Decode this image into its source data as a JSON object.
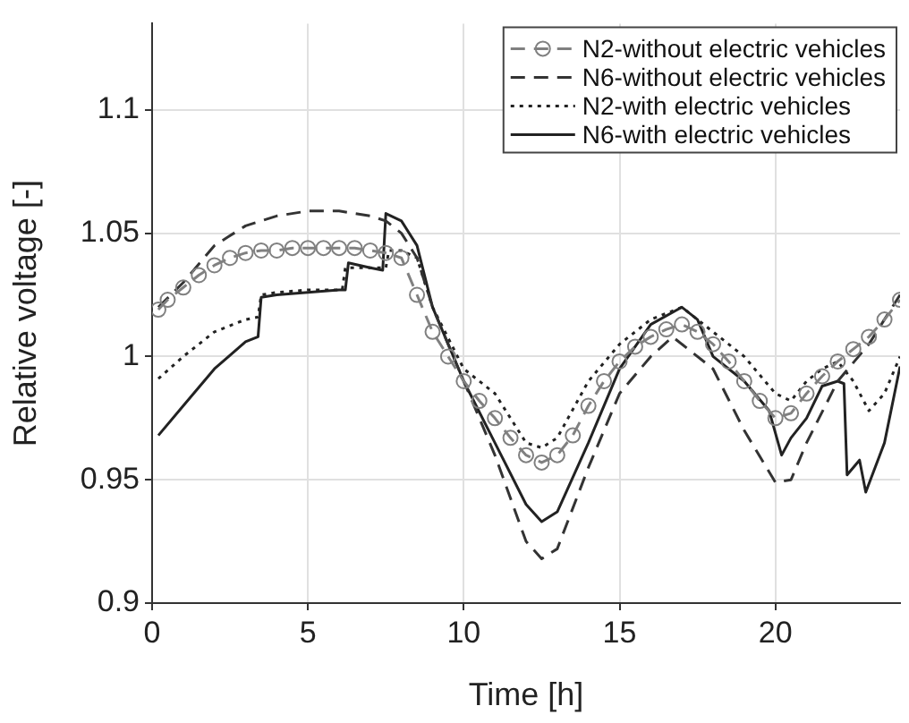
{
  "chart_data": {
    "type": "line",
    "xlabel": "Time [h]",
    "ylabel": "Relative voltage [-]",
    "xlim": [
      0,
      24
    ],
    "ylim": [
      0.9,
      1.135
    ],
    "xticks": [
      0,
      5,
      10,
      15,
      20
    ],
    "yticks": [
      0.9,
      0.95,
      1,
      1.05,
      1.1
    ],
    "grid": true,
    "legend": "top right",
    "series": [
      {
        "name": "N2-without electric vehicles",
        "color": "#808080",
        "marker": "circle",
        "line_style": "dashed",
        "x": [
          0.2,
          0.5,
          1,
          1.5,
          2,
          2.5,
          3,
          3.5,
          4,
          4.5,
          5,
          5.5,
          6,
          6.5,
          7,
          7.5,
          8,
          8.5,
          9,
          9.5,
          10,
          10.5,
          11,
          11.5,
          12,
          12.5,
          13,
          13.5,
          14,
          14.5,
          15,
          15.5,
          16,
          16.5,
          17,
          17.5,
          18,
          18.5,
          19,
          19.5,
          20,
          20.5,
          21,
          21.5,
          22,
          22.5,
          23,
          23.5,
          24
        ],
        "values": [
          1.019,
          1.023,
          1.028,
          1.033,
          1.037,
          1.04,
          1.042,
          1.043,
          1.043,
          1.044,
          1.044,
          1.044,
          1.044,
          1.044,
          1.043,
          1.042,
          1.04,
          1.025,
          1.01,
          1.0,
          0.99,
          0.982,
          0.975,
          0.967,
          0.96,
          0.957,
          0.96,
          0.968,
          0.98,
          0.99,
          0.998,
          1.004,
          1.008,
          1.011,
          1.013,
          1.01,
          1.005,
          0.998,
          0.99,
          0.982,
          0.975,
          0.977,
          0.985,
          0.992,
          0.998,
          1.003,
          1.008,
          1.015,
          1.023
        ]
      },
      {
        "name": "N6-without electric vehicles",
        "color": "#333333",
        "marker": "none",
        "line_style": "dashed",
        "x": [
          0.2,
          1,
          2,
          3,
          4,
          5,
          6,
          7,
          7.5,
          8,
          8.5,
          9,
          10,
          11,
          12,
          12.5,
          13,
          14,
          15,
          16,
          16.7,
          18,
          19,
          20,
          20.5,
          21,
          22,
          23,
          24
        ],
        "values": [
          1.02,
          1.03,
          1.045,
          1.053,
          1.057,
          1.059,
          1.059,
          1.057,
          1.055,
          1.05,
          1.04,
          1.02,
          0.99,
          0.96,
          0.925,
          0.918,
          0.922,
          0.955,
          0.985,
          1.0,
          1.008,
          0.995,
          0.97,
          0.949,
          0.95,
          0.965,
          0.99,
          1.005,
          1.025
        ]
      },
      {
        "name": "N2-with electric vehicles",
        "color": "#222222",
        "marker": "none",
        "line_style": "dotted",
        "x": [
          0.2,
          1,
          2,
          3,
          3.4,
          3.5,
          4,
          5,
          6,
          6.1,
          6.2,
          7,
          7.5,
          7.6,
          8,
          8.5,
          9,
          10,
          11,
          12,
          12.5,
          13,
          14,
          15,
          16,
          17,
          18,
          19,
          20,
          20.5,
          21,
          21.5,
          22,
          22.5,
          23,
          23.5,
          24
        ],
        "values": [
          0.991,
          1.0,
          1.01,
          1.015,
          1.016,
          1.025,
          1.026,
          1.027,
          1.027,
          1.027,
          1.036,
          1.036,
          1.036,
          1.043,
          1.043,
          1.04,
          1.02,
          0.995,
          0.985,
          0.965,
          0.963,
          0.967,
          0.99,
          1.005,
          1.015,
          1.02,
          1.01,
          1.0,
          0.985,
          0.982,
          0.99,
          0.995,
          0.998,
          0.99,
          0.978,
          0.985,
          1.0
        ]
      },
      {
        "name": "N6-with electric vehicles",
        "color": "#222222",
        "marker": "none",
        "line_style": "solid",
        "x": [
          0.2,
          1,
          2,
          3,
          3.4,
          3.5,
          4,
          6,
          6.2,
          6.3,
          7,
          7.4,
          7.5,
          8,
          8.5,
          9,
          10,
          11,
          12,
          12.5,
          13,
          14,
          15,
          16,
          17,
          17.5,
          18,
          19,
          19.8,
          20.2,
          20.5,
          21,
          21.5,
          22,
          22.2,
          22.3,
          22.7,
          22.9,
          23.5,
          24
        ],
        "values": [
          0.968,
          0.98,
          0.995,
          1.006,
          1.008,
          1.024,
          1.025,
          1.027,
          1.027,
          1.038,
          1.036,
          1.035,
          1.058,
          1.055,
          1.045,
          1.02,
          0.99,
          0.965,
          0.94,
          0.933,
          0.937,
          0.965,
          0.995,
          1.013,
          1.02,
          1.015,
          1.0,
          0.99,
          0.978,
          0.96,
          0.967,
          0.975,
          0.988,
          0.99,
          0.989,
          0.952,
          0.958,
          0.945,
          0.965,
          0.996
        ]
      }
    ]
  }
}
